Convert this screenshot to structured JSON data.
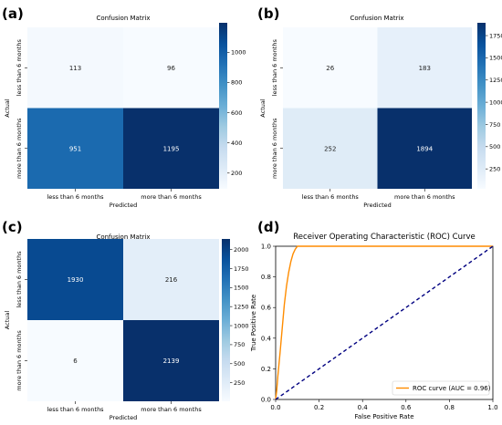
{
  "chart_data": [
    {
      "panel_label": "(a)",
      "type": "heatmap",
      "title": "Confusion Matrix",
      "xlabel": "Predicted",
      "ylabel": "Actual",
      "x_categories": [
        "less than 6 months",
        "more than 6 months"
      ],
      "y_categories": [
        "less than 6 months",
        "more than 6 months"
      ],
      "values": [
        [
          113,
          96
        ],
        [
          951,
          1195
        ]
      ],
      "colormap": "Blues",
      "colorbar_ticks": [
        200,
        400,
        600,
        800,
        1000
      ],
      "vmin": 96,
      "vmax": 1195
    },
    {
      "panel_label": "(b)",
      "type": "heatmap",
      "title": "Confusion Matrix",
      "xlabel": "Predicted",
      "ylabel": "Actual",
      "x_categories": [
        "less than 6 months",
        "more than 6 months"
      ],
      "y_categories": [
        "less than 6 months",
        "more than 6 months"
      ],
      "values": [
        [
          26,
          183
        ],
        [
          252,
          1894
        ]
      ],
      "colormap": "Blues",
      "colorbar_ticks": [
        250,
        500,
        750,
        1000,
        1250,
        1500,
        1750
      ],
      "vmin": 26,
      "vmax": 1894
    },
    {
      "panel_label": "(c)",
      "type": "heatmap",
      "title": "Confusion Matrix",
      "xlabel": "Predicted",
      "ylabel": "Actual",
      "x_categories": [
        "less than 6 months",
        "more than 6 months"
      ],
      "y_categories": [
        "less than 6 months",
        "more than 6 months"
      ],
      "values": [
        [
          1930,
          216
        ],
        [
          6,
          2139
        ]
      ],
      "colormap": "Blues",
      "colorbar_ticks": [
        250,
        500,
        750,
        1000,
        1250,
        1500,
        1750,
        2000
      ],
      "vmin": 6,
      "vmax": 2139
    },
    {
      "panel_label": "(d)",
      "type": "line",
      "title": "Receiver Operating Characteristic (ROC) Curve",
      "xlabel": "False Positive Rate",
      "ylabel": "True Positive Rate",
      "xlim": [
        0,
        1
      ],
      "ylim": [
        0,
        1.0
      ],
      "xticks": [
        "0.0",
        "0.2",
        "0.4",
        "0.6",
        "0.8",
        "1.0"
      ],
      "yticks": [
        "0.0",
        "0.2",
        "0.4",
        "0.6",
        "0.8",
        "1.0"
      ],
      "legend_position": "lower-right",
      "series": [
        {
          "name": "ROC curve (AUC = 0.96)",
          "color": "#ff8c00",
          "x": [
            0,
            0.005,
            0.01,
            0.02,
            0.03,
            0.04,
            0.05,
            0.06,
            0.07,
            0.08,
            0.09,
            0.1,
            0.2,
            0.4,
            0.6,
            0.8,
            1.0
          ],
          "y": [
            0,
            0.06,
            0.15,
            0.3,
            0.46,
            0.62,
            0.74,
            0.83,
            0.9,
            0.95,
            0.98,
            1.0,
            1.0,
            1.0,
            1.0,
            1.0,
            1.0
          ]
        },
        {
          "color": "#000080",
          "style": "dashed",
          "x": [
            0,
            1
          ],
          "y": [
            0,
            1
          ]
        }
      ]
    }
  ]
}
